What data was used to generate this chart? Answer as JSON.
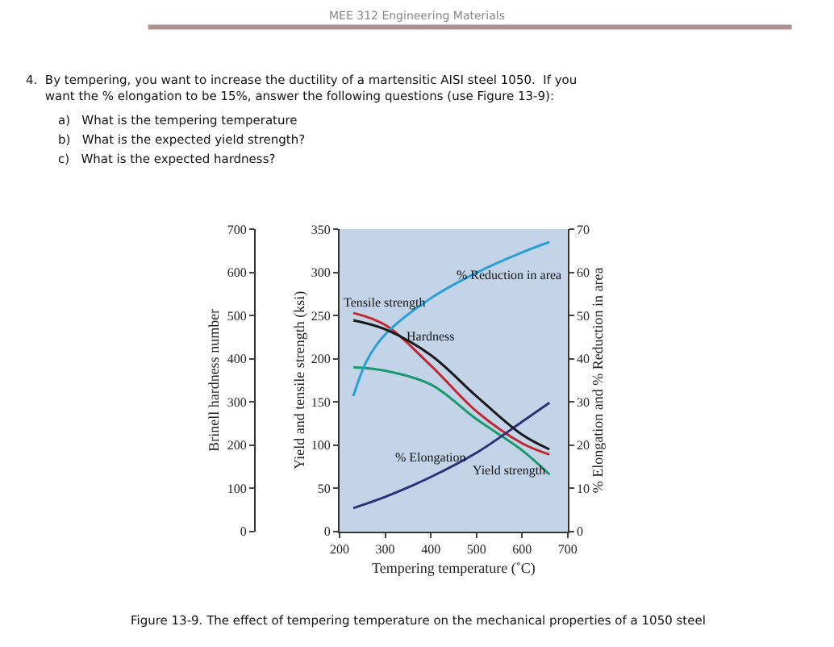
{
  "chart_data": {
    "type": "line",
    "xlabel": "Tempering temperature (˚C)",
    "ylabel": "Yield and tensile strength (ksi)",
    "y2label": "% Elongation and % Reduction in area",
    "y3label": "Brinell hardness number",
    "xlim": [
      200,
      700
    ],
    "xticks": [
      200,
      300,
      400,
      500,
      600,
      700
    ],
    "ylim": [
      0,
      350
    ],
    "yticks": [
      0,
      50,
      100,
      150,
      200,
      250,
      300,
      350
    ],
    "y2lim": [
      0,
      70
    ],
    "y2ticks": [
      0,
      10,
      20,
      30,
      40,
      50,
      60,
      70
    ],
    "y3lim": [
      0,
      700
    ],
    "y3ticks": [
      0,
      100,
      200,
      300,
      400,
      500,
      600,
      700
    ],
    "x": [
      230,
      300,
      400,
      500,
      600,
      660
    ],
    "grid": false,
    "legend": false,
    "marker": "none",
    "line_style": "solid",
    "series": [
      {
        "name": "Tensile strength",
        "color": "#c0282d",
        "values": [
          253,
          239,
          192,
          139,
          102,
          89
        ]
      },
      {
        "name": "Hardness",
        "color": "#1a1a1a",
        "axis": "y3",
        "values": [
          489,
          468,
          408,
          313,
          224,
          190
        ]
      },
      {
        "name": "Yield strength",
        "color": "#1a9a6c",
        "values": [
          190,
          186,
          170,
          130,
          94,
          66
        ]
      },
      {
        "name": "% Reduction in area",
        "color": "#2a9fd8",
        "axis": "y2",
        "x": [
          230,
          260,
          300,
          400,
          500,
          600,
          660
        ],
        "values": [
          31.3,
          39.6,
          45.6,
          54,
          59.9,
          64.6,
          67
        ]
      },
      {
        "name": "% Elongation",
        "color": "#2e2f7a",
        "axis": "y2",
        "values": [
          5.4,
          8,
          12.6,
          18.2,
          25.4,
          29.8
        ]
      }
    ],
    "annotations": [
      "MEE 312 Engineering Materials",
      "4.  By tempering, you want to increase the ductility of a martensitic AISI steel 1050.  If you want the % elongation to be 15%, answer the following questions (use Figure 13-9):",
      "a)   What is the tempering temperature",
      "b)   What is the expected yield strength?",
      "c)   What is the expected hardness?",
      "Figure 13-9. The effect of tempering temperature on the mechanical properties of a 1050 steel"
    ]
  }
}
